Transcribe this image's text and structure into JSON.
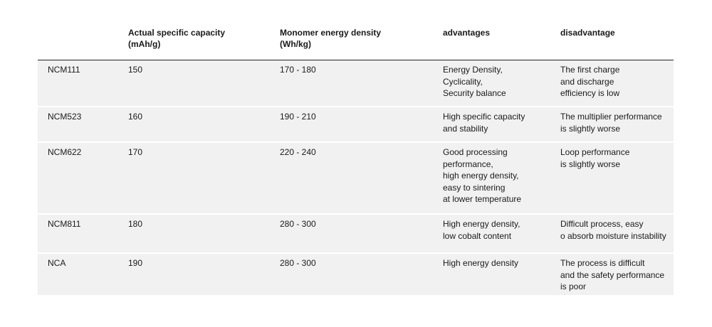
{
  "table": {
    "headers": [
      "",
      "Actual specific capacity\n(mAh/g)",
      "Monomer energy density\n(Wh/kg)",
      "advantages",
      "disadvantage"
    ],
    "rows": [
      {
        "material": "NCM111",
        "capacity": "150",
        "energy_density": "170 - 180",
        "advantages": "Energy Density,\nCyclicality,\nSecurity balance",
        "disadvantage": "The first charge\nand discharge\nefficiency is low"
      },
      {
        "material": "NCM523",
        "capacity": "160",
        "energy_density": "190 - 210",
        "advantages": "High specific capacity\nand stability",
        "disadvantage": "The multiplier performance\nis slightly worse"
      },
      {
        "material": "NCM622",
        "capacity": "170",
        "energy_density": "220 - 240",
        "advantages": "Good processing\nperformance,\nhigh energy density,\neasy to sintering\nat lower temperature",
        "disadvantage": "Loop performance\nis slightly worse"
      },
      {
        "material": "NCM811",
        "capacity": "180",
        "energy_density": "280 - 300",
        "advantages": "High energy density,\nlow cobalt content",
        "disadvantage": "Difficult process, easy\no absorb moisture instability"
      },
      {
        "material": "NCA",
        "capacity": "190",
        "energy_density": "280 - 300",
        "advantages": "High energy density",
        "disadvantage": "The process is difficult\nand the safety performance\nis poor"
      }
    ]
  }
}
